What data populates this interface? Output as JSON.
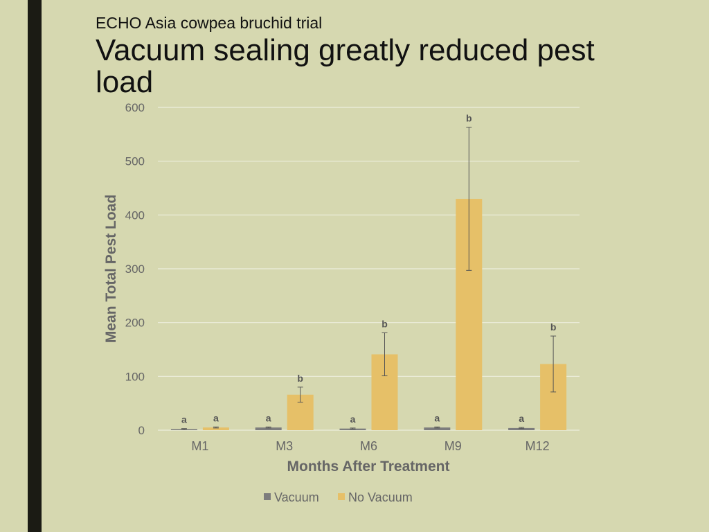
{
  "slide": {
    "subtitle": "ECHO Asia cowpea bruchid trial",
    "title": "Vacuum sealing greatly reduced pest load"
  },
  "colors": {
    "background": "#d6d8b0",
    "side_bar": "#1b1b14",
    "vacuum": "#7d7d7d",
    "no_vacuum": "#e6c068",
    "grid": "#eceedd",
    "text_gray": "#666666"
  },
  "chart_data": {
    "type": "bar",
    "xlabel": "Months After Treatment",
    "ylabel": "Mean Total Pest Load",
    "ylim": [
      0,
      600
    ],
    "yticks": [
      0,
      100,
      200,
      300,
      400,
      500,
      600
    ],
    "grid": true,
    "legend_position": "bottom",
    "categories": [
      "M1",
      "M3",
      "M6",
      "M9",
      "M12"
    ],
    "series": [
      {
        "name": "Vacuum",
        "values": [
          2,
          5,
          3,
          5,
          4
        ],
        "error": [
          1,
          1,
          1,
          1,
          1
        ],
        "labels": [
          "a",
          "a",
          "a",
          "a",
          "a"
        ]
      },
      {
        "name": "No Vacuum",
        "values": [
          5,
          66,
          141,
          430,
          123
        ],
        "error": [
          1,
          14,
          40,
          133,
          52
        ],
        "labels": [
          "a",
          "b",
          "b",
          "b",
          "b"
        ]
      }
    ]
  }
}
